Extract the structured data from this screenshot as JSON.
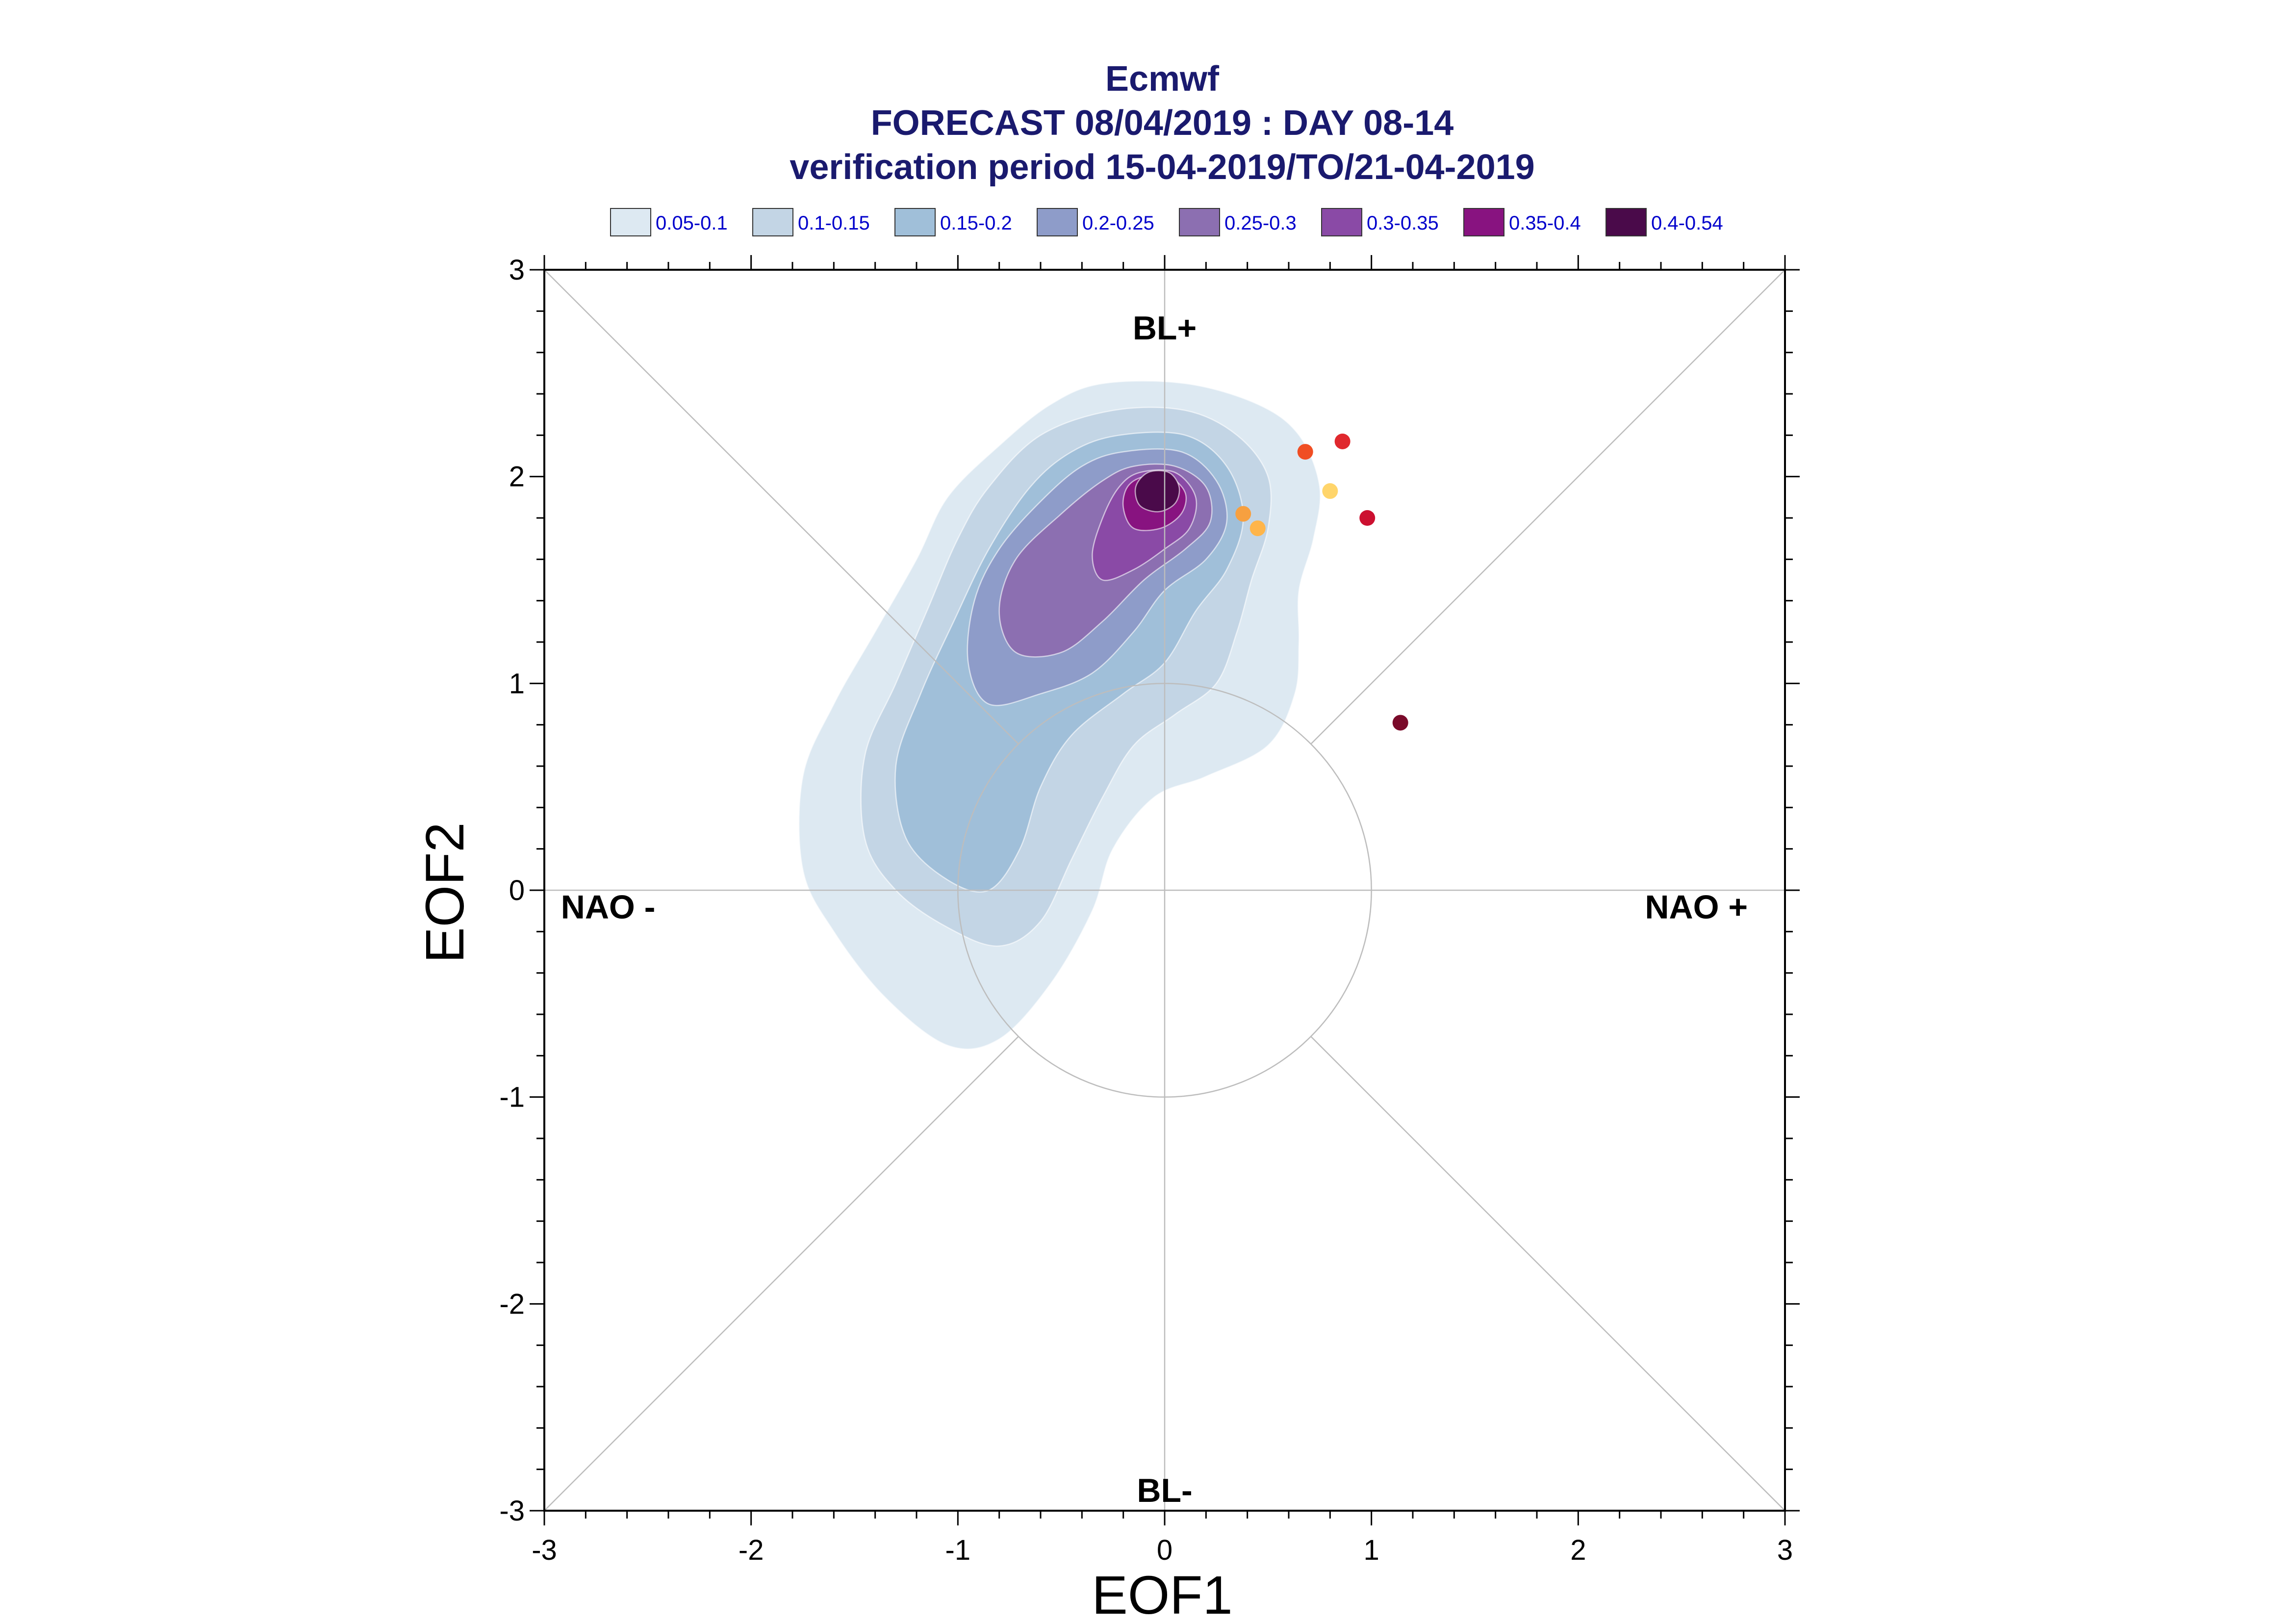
{
  "chart_data": {
    "type": "contour-scatter",
    "title_lines": [
      "Ecmwf",
      "FORECAST 08/04/2019 : DAY 08-14",
      "verification period 15-04-2019/TO/21-04-2019"
    ],
    "xlabel": "EOF1",
    "ylabel": "EOF2",
    "xlim": [
      -3,
      3
    ],
    "ylim": [
      -3,
      3
    ],
    "xticks": [
      "-3",
      "-2",
      "-1",
      "0",
      "1",
      "2",
      "3"
    ],
    "yticks": [
      "-3",
      "-2",
      "-1",
      "0",
      "1",
      "2",
      "3"
    ],
    "grid": false,
    "regime_labels": {
      "top": "BL+",
      "bottom": "BL-",
      "left": "NAO -",
      "right": "NAO +"
    },
    "legend": {
      "placement": "top",
      "entries": [
        {
          "label": "0.05-0.1",
          "color": "#dde9f2"
        },
        {
          "label": "0.1-0.15",
          "color": "#c3d5e5"
        },
        {
          "label": "0.15-0.2",
          "color": "#a0bfd9"
        },
        {
          "label": "0.2-0.25",
          "color": "#8e9cc9"
        },
        {
          "label": "0.25-0.3",
          "color": "#8c6fb1"
        },
        {
          "label": "0.3-0.35",
          "color": "#8a4aa6"
        },
        {
          "label": "0.35-0.4",
          "color": "#881380"
        },
        {
          "label": "0.4-0.54",
          "color": "#4a0a4a"
        }
      ]
    },
    "density_levels": [
      {
        "range": "0.05-0.1",
        "color": "#dde9f2",
        "polygon": [
          [
            -0.3,
            2.45
          ],
          [
            0.1,
            2.45
          ],
          [
            0.45,
            2.35
          ],
          [
            0.65,
            2.2
          ],
          [
            0.75,
            1.95
          ],
          [
            0.72,
            1.7
          ],
          [
            0.65,
            1.45
          ],
          [
            0.65,
            1.2
          ],
          [
            0.63,
            0.95
          ],
          [
            0.5,
            0.7
          ],
          [
            0.2,
            0.55
          ],
          [
            -0.05,
            0.45
          ],
          [
            -0.25,
            0.2
          ],
          [
            -0.35,
            -0.1
          ],
          [
            -0.55,
            -0.45
          ],
          [
            -0.8,
            -0.72
          ],
          [
            -1.05,
            -0.75
          ],
          [
            -1.35,
            -0.52
          ],
          [
            -1.6,
            -0.2
          ],
          [
            -1.75,
            0.1
          ],
          [
            -1.75,
            0.55
          ],
          [
            -1.6,
            0.9
          ],
          [
            -1.4,
            1.25
          ],
          [
            -1.2,
            1.6
          ],
          [
            -1.05,
            1.9
          ],
          [
            -0.8,
            2.15
          ],
          [
            -0.55,
            2.35
          ]
        ]
      },
      {
        "range": "0.1-0.15",
        "color": "#c3d5e5",
        "polygon": [
          [
            -0.25,
            2.32
          ],
          [
            0.1,
            2.32
          ],
          [
            0.35,
            2.2
          ],
          [
            0.5,
            2.0
          ],
          [
            0.5,
            1.75
          ],
          [
            0.42,
            1.5
          ],
          [
            0.35,
            1.25
          ],
          [
            0.25,
            1.0
          ],
          [
            0.05,
            0.85
          ],
          [
            -0.15,
            0.7
          ],
          [
            -0.3,
            0.45
          ],
          [
            -0.45,
            0.15
          ],
          [
            -0.6,
            -0.15
          ],
          [
            -0.8,
            -0.27
          ],
          [
            -1.05,
            -0.18
          ],
          [
            -1.3,
            0.0
          ],
          [
            -1.45,
            0.25
          ],
          [
            -1.45,
            0.65
          ],
          [
            -1.3,
            1.0
          ],
          [
            -1.15,
            1.35
          ],
          [
            -1.0,
            1.7
          ],
          [
            -0.85,
            1.95
          ],
          [
            -0.6,
            2.2
          ]
        ]
      },
      {
        "range": "0.15-0.2",
        "color": "#a0bfd9",
        "polygon": [
          [
            -0.22,
            2.2
          ],
          [
            0.1,
            2.2
          ],
          [
            0.3,
            2.05
          ],
          [
            0.38,
            1.8
          ],
          [
            0.3,
            1.55
          ],
          [
            0.15,
            1.35
          ],
          [
            0.0,
            1.1
          ],
          [
            -0.2,
            0.95
          ],
          [
            -0.45,
            0.75
          ],
          [
            -0.6,
            0.5
          ],
          [
            -0.7,
            0.2
          ],
          [
            -0.85,
            0.0
          ],
          [
            -1.05,
            0.05
          ],
          [
            -1.25,
            0.25
          ],
          [
            -1.3,
            0.6
          ],
          [
            -1.18,
            0.95
          ],
          [
            -1.02,
            1.3
          ],
          [
            -0.85,
            1.65
          ],
          [
            -0.65,
            1.95
          ],
          [
            -0.45,
            2.12
          ]
        ]
      },
      {
        "range": "0.2-0.25",
        "color": "#8e9cc9",
        "polygon": [
          [
            -0.2,
            2.12
          ],
          [
            0.08,
            2.12
          ],
          [
            0.25,
            1.98
          ],
          [
            0.3,
            1.78
          ],
          [
            0.2,
            1.6
          ],
          [
            0.0,
            1.45
          ],
          [
            -0.15,
            1.25
          ],
          [
            -0.35,
            1.05
          ],
          [
            -0.6,
            0.95
          ],
          [
            -0.85,
            0.9
          ],
          [
            -0.95,
            1.1
          ],
          [
            -0.92,
            1.4
          ],
          [
            -0.8,
            1.65
          ],
          [
            -0.6,
            1.88
          ],
          [
            -0.4,
            2.05
          ]
        ]
      },
      {
        "range": "0.25-0.3",
        "color": "#8c6fb1",
        "polygon": [
          [
            -0.15,
            2.05
          ],
          [
            0.05,
            2.05
          ],
          [
            0.2,
            1.95
          ],
          [
            0.22,
            1.78
          ],
          [
            0.1,
            1.65
          ],
          [
            -0.1,
            1.5
          ],
          [
            -0.3,
            1.3
          ],
          [
            -0.5,
            1.15
          ],
          [
            -0.72,
            1.15
          ],
          [
            -0.8,
            1.35
          ],
          [
            -0.72,
            1.6
          ],
          [
            -0.5,
            1.82
          ],
          [
            -0.3,
            1.98
          ]
        ]
      },
      {
        "range": "0.3-0.35",
        "color": "#8a4aa6",
        "polygon": [
          [
            -0.12,
            2.02
          ],
          [
            0.05,
            2.02
          ],
          [
            0.15,
            1.9
          ],
          [
            0.12,
            1.75
          ],
          [
            0.0,
            1.65
          ],
          [
            -0.15,
            1.55
          ],
          [
            -0.3,
            1.5
          ],
          [
            -0.35,
            1.62
          ],
          [
            -0.3,
            1.8
          ],
          [
            -0.22,
            1.95
          ]
        ]
      },
      {
        "range": "0.35-0.4",
        "color": "#881380",
        "polygon": [
          [
            -0.1,
            2.0
          ],
          [
            0.02,
            2.0
          ],
          [
            0.1,
            1.92
          ],
          [
            0.08,
            1.82
          ],
          [
            -0.02,
            1.75
          ],
          [
            -0.15,
            1.75
          ],
          [
            -0.2,
            1.85
          ],
          [
            -0.18,
            1.95
          ]
        ]
      },
      {
        "range": "0.4-0.54",
        "color": "#4a0a4a",
        "polygon": [
          [
            -0.08,
            2.02
          ],
          [
            0.02,
            2.02
          ],
          [
            0.07,
            1.95
          ],
          [
            0.05,
            1.87
          ],
          [
            -0.03,
            1.83
          ],
          [
            -0.12,
            1.86
          ],
          [
            -0.14,
            1.95
          ]
        ]
      }
    ],
    "points": [
      {
        "x": 0.86,
        "y": 2.17,
        "color": "#e0282e"
      },
      {
        "x": 0.68,
        "y": 2.12,
        "color": "#f04e23"
      },
      {
        "x": 0.8,
        "y": 1.93,
        "color": "#ffd56b"
      },
      {
        "x": 0.38,
        "y": 1.82,
        "color": "#f7a040"
      },
      {
        "x": 0.45,
        "y": 1.75,
        "color": "#ffb54a"
      },
      {
        "x": 0.98,
        "y": 1.8,
        "color": "#cc1030"
      },
      {
        "x": 1.14,
        "y": 0.81,
        "color": "#7a0a2a"
      }
    ]
  }
}
